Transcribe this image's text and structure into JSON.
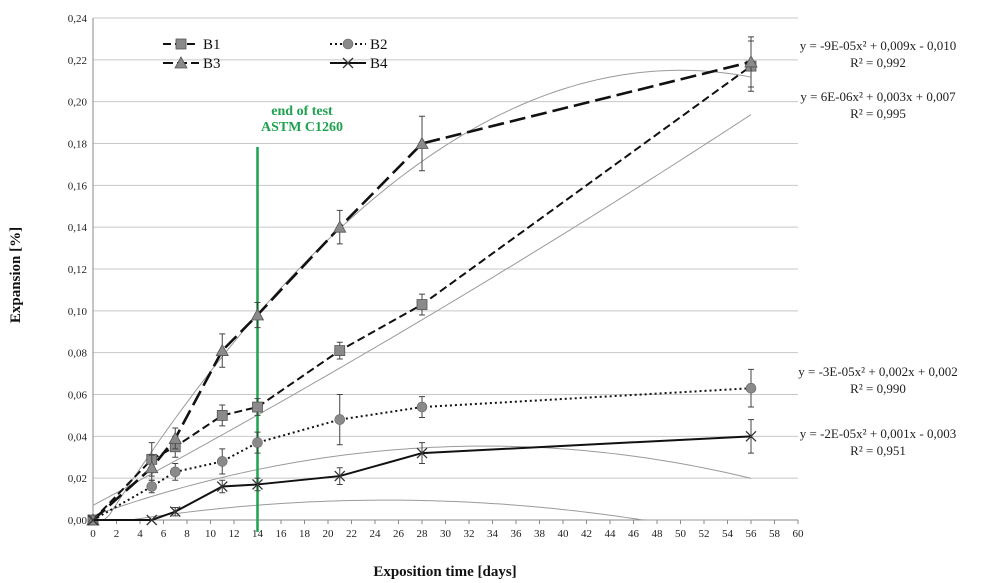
{
  "chart_data": {
    "type": "line",
    "xlabel": "Exposition time [days]",
    "ylabel": "Expansion [%]",
    "xlim": [
      0,
      60
    ],
    "ylim": [
      0,
      0.24
    ],
    "x_ticks": [
      "0",
      "2",
      "4",
      "6",
      "8",
      "10",
      "12",
      "14",
      "16",
      "18",
      "20",
      "22",
      "24",
      "26",
      "28",
      "30",
      "32",
      "34",
      "36",
      "38",
      "40",
      "42",
      "44",
      "46",
      "48",
      "50",
      "52",
      "54",
      "56",
      "58",
      "60"
    ],
    "y_ticks": [
      "0,00",
      "0,02",
      "0,04",
      "0,06",
      "0,08",
      "0,10",
      "0,12",
      "0,14",
      "0,16",
      "0,18",
      "0,20",
      "0,22",
      "0,24"
    ],
    "grid": "horizontal",
    "legend_position": "top-left",
    "series": [
      {
        "name": "B1",
        "marker": "square",
        "line": "dashed",
        "x": [
          0,
          5,
          7,
          11,
          14,
          21,
          28,
          56
        ],
        "y": [
          0.0,
          0.029,
          0.035,
          0.05,
          0.054,
          0.081,
          0.103,
          0.217
        ],
        "err": [
          0.0,
          0.008,
          0.005,
          0.005,
          0.004,
          0.004,
          0.005,
          0.012
        ],
        "trend": {
          "a": 6e-06,
          "b": 0.003,
          "c": 0.007,
          "x_range": [
            0,
            56
          ]
        },
        "equation": "y = 6E-06x² + 0,003x + 0,007",
        "r2": "R² = 0,995"
      },
      {
        "name": "B2",
        "marker": "circle",
        "line": "dotted",
        "x": [
          0,
          5,
          7,
          11,
          14,
          21,
          28,
          56
        ],
        "y": [
          0.0,
          0.016,
          0.023,
          0.028,
          0.037,
          0.048,
          0.054,
          0.063
        ],
        "err": [
          0.0,
          0.003,
          0.004,
          0.006,
          0.005,
          0.012,
          0.005,
          0.009
        ],
        "trend": {
          "a": -3e-05,
          "b": 0.002,
          "c": 0.002,
          "x_range": [
            0,
            56
          ]
        },
        "equation": "y = -3E-05x² + 0,002x + 0,002",
        "r2": "R² = 0,990"
      },
      {
        "name": "B3",
        "marker": "triangle",
        "line": "long-dash",
        "x": [
          0,
          5,
          7,
          11,
          14,
          21,
          28,
          56
        ],
        "y": [
          0.0,
          0.025,
          0.039,
          0.081,
          0.098,
          0.14,
          0.18,
          0.219
        ],
        "err": [
          0.0,
          0.006,
          0.005,
          0.008,
          0.006,
          0.008,
          0.013,
          0.012
        ],
        "trend": {
          "a": -9e-05,
          "b": 0.009,
          "c": -0.01,
          "x_range": [
            0,
            56
          ]
        },
        "equation": "y = -9E-05x² + 0,009x - 0,010",
        "r2": "R² = 0,992"
      },
      {
        "name": "B4",
        "marker": "x",
        "line": "solid",
        "x": [
          0,
          5,
          7,
          11,
          14,
          21,
          28,
          56
        ],
        "y": [
          0.0,
          0.0,
          0.004,
          0.016,
          0.017,
          0.021,
          0.032,
          0.04
        ],
        "err": [
          0.0,
          0.0,
          0.002,
          0.003,
          0.003,
          0.004,
          0.005,
          0.008
        ],
        "trend": {
          "a": -2e-05,
          "b": 0.001,
          "c": -0.003,
          "x_range": [
            0,
            56
          ]
        },
        "equation": "y = -2E-05x² + 0,001x - 0,003",
        "r2": "R² = 0,951"
      }
    ],
    "annotations": [
      {
        "text_lines": [
          "end of test",
          "ASTM C1260"
        ],
        "x": 14,
        "color": "#1fa24f"
      }
    ]
  }
}
